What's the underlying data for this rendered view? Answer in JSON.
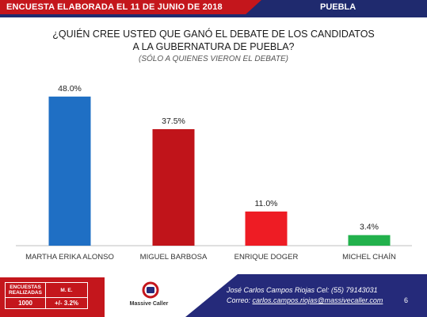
{
  "header": {
    "left_text": "ENCUESTA ELABORADA EL   11 DE JUNIO DE 2018",
    "right_text": "PUEBLA"
  },
  "chart_data": {
    "type": "bar",
    "title_line1": "¿QUIÉN CREE USTED QUE GANÓ EL DEBATE DE LOS CANDIDATOS",
    "title_line2": "A LA GUBERNATURA DE PUEBLA?",
    "subtitle": "(SÓLO A QUIENES VIERON EL DEBATE)",
    "categories": [
      "MARTHA ERIKA ALONSO",
      "MIGUEL BARBOSA",
      "ENRIQUE DOGER",
      "MICHEL CHAÍN"
    ],
    "values": [
      48.0,
      37.5,
      11.0,
      3.4
    ],
    "data_labels": [
      "48.0%",
      "37.5%",
      "11.0%",
      "3.4%"
    ],
    "colors": [
      "#1f6fc4",
      "#c0141a",
      "#ee1c24",
      "#22b14c"
    ],
    "ylim": [
      0,
      50
    ],
    "grid": false,
    "legend": "none"
  },
  "footer": {
    "table_header_1": "ENCUESTAS REALIZADAS",
    "table_header_2": "M. E.",
    "table_value_1": "1000",
    "table_value_2": "+/- 3.2%",
    "logo_text": "Massive Caller",
    "contact_line1": "José Carlos Campos Riojas Cel: (55) 79143031",
    "contact_line2_prefix": "Correo: ",
    "contact_email": "carlos.campos.riojas@massivecaller.com",
    "page_number": "6"
  }
}
